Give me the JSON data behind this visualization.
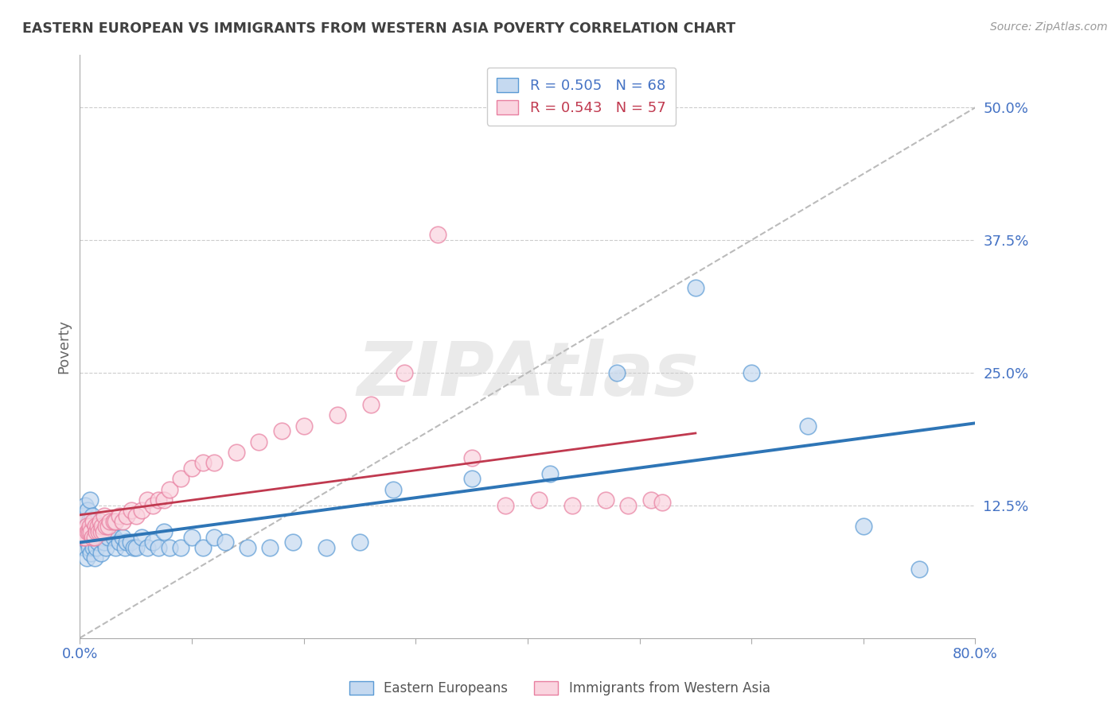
{
  "title": "EASTERN EUROPEAN VS IMMIGRANTS FROM WESTERN ASIA POVERTY CORRELATION CHART",
  "source": "Source: ZipAtlas.com",
  "ylabel": "Poverty",
  "xlim": [
    0.0,
    0.8
  ],
  "ylim": [
    0.0,
    0.55
  ],
  "yticks": [
    0.125,
    0.25,
    0.375,
    0.5
  ],
  "ytick_labels": [
    "12.5%",
    "25.0%",
    "37.5%",
    "50.0%"
  ],
  "xticks": [
    0.0,
    0.1,
    0.2,
    0.3,
    0.4,
    0.5,
    0.6,
    0.7,
    0.8
  ],
  "series1_label": "Eastern Europeans",
  "series1_fill": "#c5d9f0",
  "series1_edge": "#5b9bd5",
  "series1_line_color": "#2e75b6",
  "series1_R": 0.505,
  "series1_N": 68,
  "series2_label": "Immigrants from Western Asia",
  "series2_fill": "#fad4df",
  "series2_edge": "#e87fa0",
  "series2_line_color": "#c0394f",
  "series2_R": 0.543,
  "series2_N": 57,
  "diag_line_color": "#bbbbbb",
  "watermark": "ZIPAtlas",
  "background_color": "#ffffff",
  "grid_color": "#cccccc",
  "title_color": "#404040",
  "axis_label_color": "#4472c4",
  "legend_color1": "#4472c4",
  "legend_color2": "#c0394f",
  "series1_x": [
    0.002,
    0.003,
    0.004,
    0.005,
    0.005,
    0.006,
    0.006,
    0.007,
    0.007,
    0.008,
    0.008,
    0.009,
    0.009,
    0.01,
    0.01,
    0.011,
    0.011,
    0.012,
    0.012,
    0.013,
    0.013,
    0.014,
    0.015,
    0.015,
    0.016,
    0.017,
    0.018,
    0.019,
    0.02,
    0.021,
    0.022,
    0.023,
    0.025,
    0.027,
    0.03,
    0.032,
    0.035,
    0.038,
    0.04,
    0.042,
    0.045,
    0.048,
    0.05,
    0.055,
    0.06,
    0.065,
    0.07,
    0.075,
    0.08,
    0.09,
    0.1,
    0.11,
    0.12,
    0.13,
    0.15,
    0.17,
    0.19,
    0.22,
    0.25,
    0.28,
    0.35,
    0.42,
    0.48,
    0.55,
    0.6,
    0.65,
    0.7,
    0.75
  ],
  "series1_y": [
    0.095,
    0.115,
    0.085,
    0.1,
    0.125,
    0.075,
    0.105,
    0.09,
    0.12,
    0.085,
    0.11,
    0.095,
    0.13,
    0.08,
    0.105,
    0.09,
    0.115,
    0.085,
    0.1,
    0.075,
    0.11,
    0.095,
    0.085,
    0.105,
    0.09,
    0.1,
    0.095,
    0.08,
    0.1,
    0.095,
    0.09,
    0.085,
    0.095,
    0.1,
    0.095,
    0.085,
    0.09,
    0.095,
    0.085,
    0.09,
    0.09,
    0.085,
    0.085,
    0.095,
    0.085,
    0.09,
    0.085,
    0.1,
    0.085,
    0.085,
    0.095,
    0.085,
    0.095,
    0.09,
    0.085,
    0.085,
    0.09,
    0.085,
    0.09,
    0.14,
    0.15,
    0.155,
    0.25,
    0.33,
    0.25,
    0.2,
    0.105,
    0.065
  ],
  "series2_x": [
    0.002,
    0.003,
    0.004,
    0.005,
    0.006,
    0.007,
    0.008,
    0.009,
    0.01,
    0.011,
    0.012,
    0.013,
    0.014,
    0.015,
    0.016,
    0.017,
    0.018,
    0.019,
    0.02,
    0.021,
    0.022,
    0.023,
    0.025,
    0.027,
    0.03,
    0.032,
    0.035,
    0.038,
    0.042,
    0.046,
    0.05,
    0.055,
    0.06,
    0.065,
    0.07,
    0.075,
    0.08,
    0.09,
    0.1,
    0.11,
    0.12,
    0.14,
    0.16,
    0.18,
    0.2,
    0.23,
    0.26,
    0.29,
    0.32,
    0.35,
    0.38,
    0.41,
    0.44,
    0.47,
    0.49,
    0.51,
    0.52
  ],
  "series2_y": [
    0.1,
    0.095,
    0.11,
    0.095,
    0.105,
    0.1,
    0.1,
    0.105,
    0.1,
    0.095,
    0.11,
    0.095,
    0.105,
    0.1,
    0.105,
    0.1,
    0.11,
    0.1,
    0.105,
    0.1,
    0.115,
    0.105,
    0.105,
    0.11,
    0.11,
    0.11,
    0.115,
    0.11,
    0.115,
    0.12,
    0.115,
    0.12,
    0.13,
    0.125,
    0.13,
    0.13,
    0.14,
    0.15,
    0.16,
    0.165,
    0.165,
    0.175,
    0.185,
    0.195,
    0.2,
    0.21,
    0.22,
    0.25,
    0.38,
    0.17,
    0.125,
    0.13,
    0.125,
    0.13,
    0.125,
    0.13,
    0.128
  ]
}
